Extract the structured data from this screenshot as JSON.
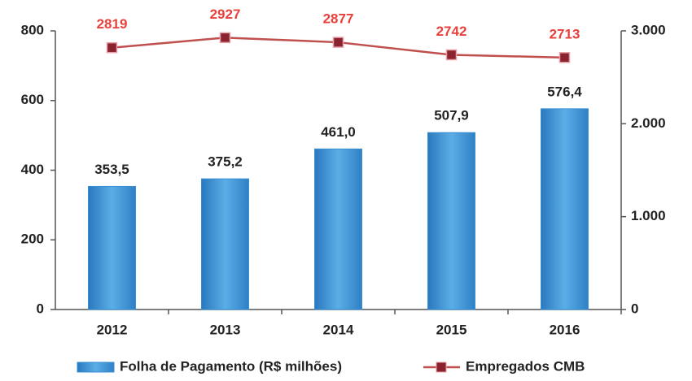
{
  "chart_data": {
    "type": "bar",
    "categories": [
      "2012",
      "2013",
      "2014",
      "2015",
      "2016"
    ],
    "series": [
      {
        "name": "Folha de Pagamento (R$ milhões)",
        "type": "bar",
        "color": "#3a8fd3",
        "values": [
          353.5,
          375.2,
          461.0,
          507.9,
          576.4
        ],
        "value_labels": [
          "353,5",
          "375,2",
          "461,0",
          "507,9",
          "576,4"
        ]
      },
      {
        "name": "Empregados CMB",
        "type": "line",
        "axis": "y2",
        "color": "#c0504d",
        "label_color": "#e8413c",
        "values": [
          2819,
          2927,
          2877,
          2742,
          2713
        ]
      }
    ],
    "ylim": [
      0,
      800
    ],
    "yticks": [
      0,
      200,
      400,
      600,
      800
    ],
    "y2lim": [
      0,
      3000
    ],
    "y2ticks": [
      0,
      {
        "value": 1000,
        "label": "1.000"
      },
      {
        "value": 2000,
        "label": "2.000"
      },
      {
        "value": 3000,
        "label": "3.000"
      }
    ],
    "grid": false
  }
}
